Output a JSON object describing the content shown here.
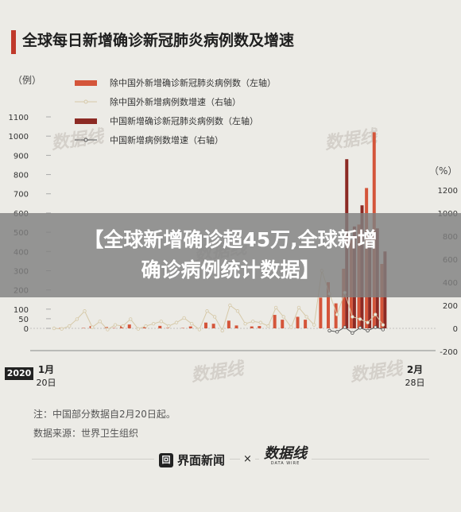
{
  "title": "全球每日新增确诊新冠肺炎病例数及增速",
  "unit_left": "（例）",
  "unit_right": "（%）",
  "year_badge": "2020",
  "x_labels": [
    {
      "month": "1月",
      "day": "20日"
    },
    {
      "month": "2月",
      "day": "28日"
    }
  ],
  "notes": [
    "注：中国部分数据自2月20日起。",
    "数据来源：世界卫生组织"
  ],
  "overlay_text_line1": "【全球新增确诊超45万,全球新增",
  "overlay_text_line2": "确诊病例统计数据】",
  "footer": {
    "brand_left": "界面新闻",
    "brand_icon": "回",
    "separator": "×",
    "brand_right": "数据线",
    "brand_right_sub": "DATA WIRE"
  },
  "watermark": "数据线",
  "colors": {
    "accent": "#c0392b",
    "foreign_bar": "#d4553a",
    "china_bar": "#8c2a24",
    "foreign_line": "#d6c9a8",
    "china_line": "#555555"
  },
  "chart_data": {
    "type": "bar",
    "title": "全球每日新增确诊新冠肺炎病例数及增速",
    "ylabel_left": "（例）",
    "ylabel_right": "（%）",
    "y_left_ticks": [
      0,
      50,
      100,
      200,
      300,
      400,
      500,
      600,
      700,
      800,
      900,
      1000,
      1100
    ],
    "y_right_ticks": [
      -200,
      0,
      200,
      400,
      600,
      800,
      1000,
      1200
    ],
    "legend": [
      {
        "name": "除中国外新增确诊新冠肺炎病例数（左轴）",
        "kind": "bar",
        "color": "#d4553a"
      },
      {
        "name": "除中国外新增病例数增速（右轴）",
        "kind": "line",
        "color": "#d6c9a8"
      },
      {
        "name": "中国新增确诊新冠肺炎病例数（左轴）",
        "kind": "bar",
        "color": "#8c2a24"
      },
      {
        "name": "中国新增病例数增速（右轴）",
        "kind": "line",
        "color": "#555555"
      }
    ],
    "x_start": "1月20日",
    "x_end": "2月28日",
    "series": [
      {
        "name": "除中国外新增确诊新冠肺炎病例数（左轴）",
        "values": [
          0,
          2,
          0,
          0,
          2,
          12,
          0,
          7,
          2,
          12,
          20,
          0,
          7,
          0,
          13,
          2,
          0,
          2,
          10,
          0,
          30,
          24,
          0,
          40,
          15,
          0,
          10,
          12,
          0,
          70,
          45,
          0,
          60,
          45,
          0,
          160,
          240,
          130,
          310,
          460,
          540,
          730,
          1020,
          335,
          0,
          0,
          0,
          0,
          0
        ]
      },
      {
        "name": "除中国外新增病例数增速（右轴）",
        "values": [
          0,
          -5,
          20,
          80,
          150,
          10,
          60,
          -10,
          30,
          20,
          80,
          -5,
          20,
          40,
          60,
          20,
          50,
          90,
          40,
          -10,
          150,
          100,
          -20,
          200,
          150,
          40,
          60,
          50,
          20,
          180,
          100,
          10,
          180,
          100,
          30,
          500,
          300,
          120,
          310,
          100,
          80,
          50,
          120,
          30,
          0,
          0,
          0,
          0,
          0
        ]
      },
      {
        "name": "中国新增确诊新冠肺炎病例数（左轴）",
        "values": [
          0,
          0,
          0,
          0,
          0,
          0,
          0,
          0,
          0,
          0,
          0,
          0,
          0,
          0,
          0,
          0,
          0,
          0,
          0,
          0,
          0,
          0,
          0,
          0,
          0,
          0,
          0,
          0,
          0,
          0,
          0,
          0,
          0,
          0,
          0,
          0,
          0,
          0,
          880,
          530,
          640,
          480,
          520,
          400,
          0,
          0,
          0,
          0,
          0
        ]
      },
      {
        "name": "中国新增病例数增速（右轴）",
        "values": [
          0,
          0,
          0,
          0,
          0,
          0,
          0,
          0,
          0,
          0,
          0,
          0,
          0,
          0,
          0,
          0,
          0,
          0,
          0,
          0,
          0,
          0,
          0,
          0,
          0,
          0,
          0,
          0,
          0,
          0,
          0,
          0,
          0,
          0,
          0,
          0,
          -20,
          -30,
          10,
          -40,
          5,
          -20,
          10,
          -10,
          0,
          0,
          0,
          0,
          0
        ]
      }
    ]
  }
}
